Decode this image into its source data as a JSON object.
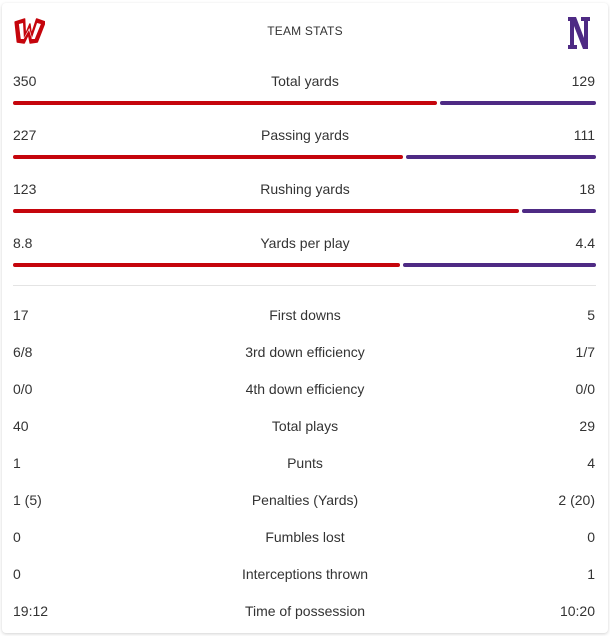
{
  "header": {
    "title": "TEAM STATS"
  },
  "teams": {
    "home": {
      "logo_icon": "wisconsin-motion-w-logo",
      "color": "#c5050c"
    },
    "away": {
      "logo_icon": "northwestern-n-logo",
      "color": "#4e2a84"
    }
  },
  "bar_stats": [
    {
      "label": "Total yards",
      "home": "350",
      "away": "129",
      "home_share": 0.731
    },
    {
      "label": "Passing yards",
      "home": "227",
      "away": "111",
      "home_share": 0.672
    },
    {
      "label": "Rushing yards",
      "home": "123",
      "away": "18",
      "home_share": 0.872
    },
    {
      "label": "Yards per play",
      "home": "8.8",
      "away": "4.4",
      "home_share": 0.667
    }
  ],
  "stats": [
    {
      "label": "First downs",
      "home": "17",
      "away": "5"
    },
    {
      "label": "3rd down efficiency",
      "home": "6/8",
      "away": "1/7"
    },
    {
      "label": "4th down efficiency",
      "home": "0/0",
      "away": "0/0"
    },
    {
      "label": "Total plays",
      "home": "40",
      "away": "29"
    },
    {
      "label": "Punts",
      "home": "1",
      "away": "4"
    },
    {
      "label": "Penalties (Yards)",
      "home": "1 (5)",
      "away": "2 (20)"
    },
    {
      "label": "Fumbles lost",
      "home": "0",
      "away": "0"
    },
    {
      "label": "Interceptions thrown",
      "home": "0",
      "away": "1"
    },
    {
      "label": "Time of possession",
      "home": "19:12",
      "away": "10:20"
    }
  ]
}
